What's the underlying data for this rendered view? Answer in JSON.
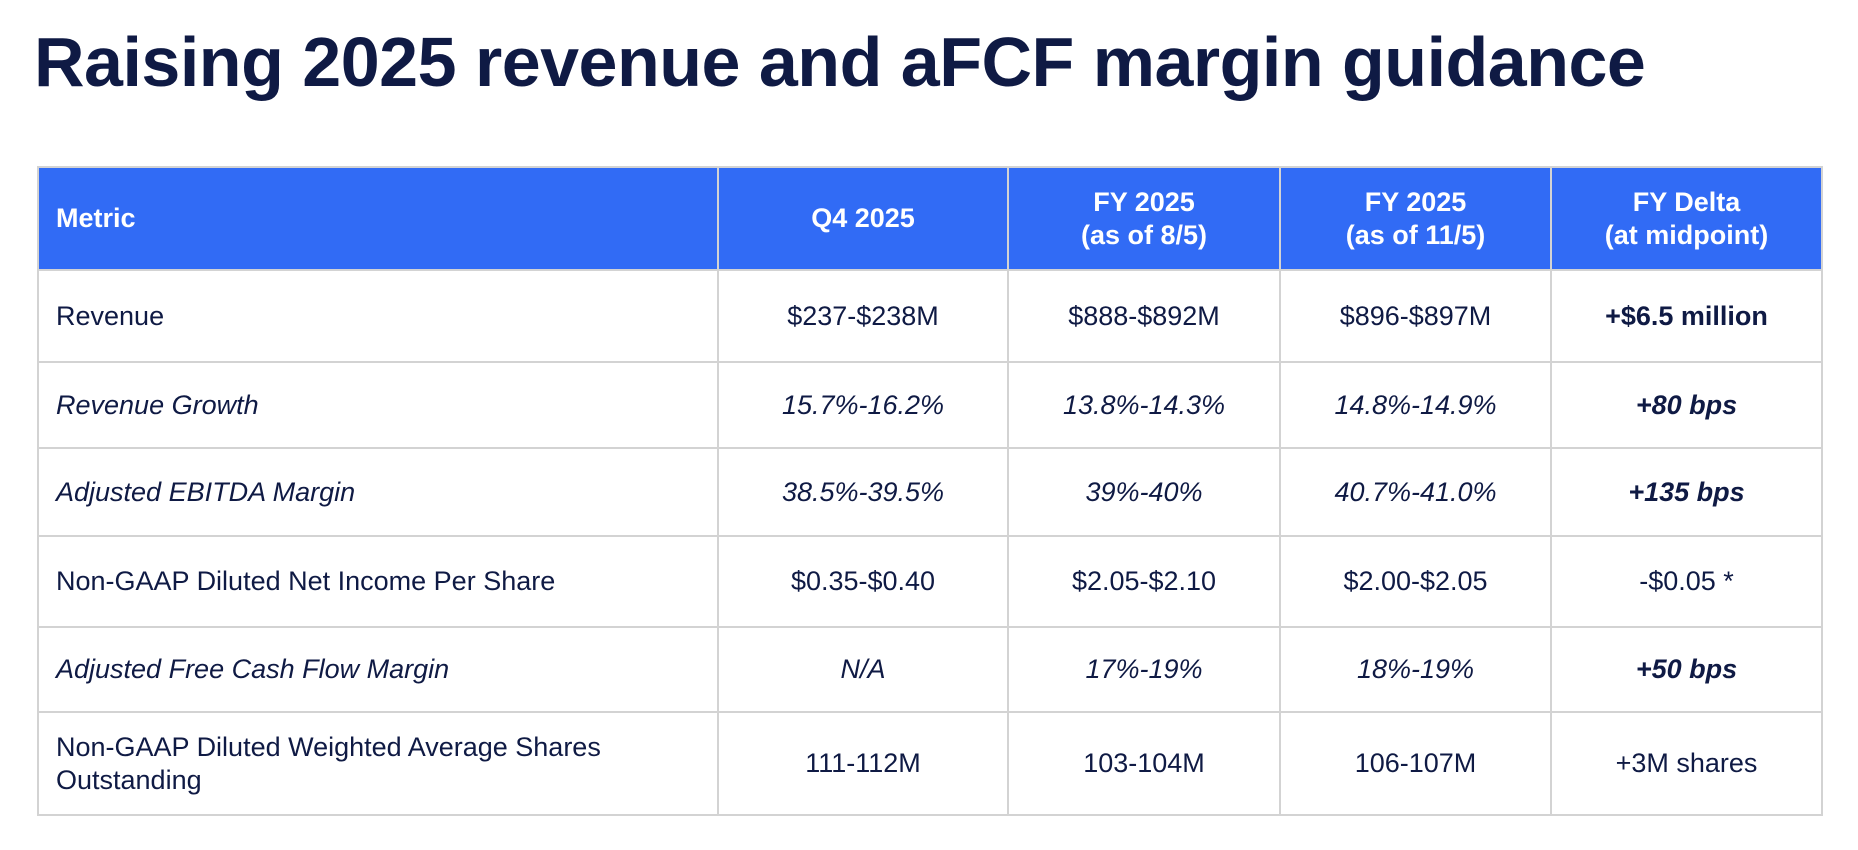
{
  "title": "Raising 2025 revenue and aFCF margin guidance",
  "colors": {
    "header_bg": "#316bf5",
    "header_text": "#ffffff",
    "title_text": "#0f1a44",
    "body_text": "#0f1a44",
    "grid": "#d3d3d3"
  },
  "table": {
    "headers": [
      {
        "line1": "Metric",
        "line2": ""
      },
      {
        "line1": "Q4 2025",
        "line2": ""
      },
      {
        "line1": "FY 2025",
        "line2": "(as of 8/5)"
      },
      {
        "line1": "FY 2025",
        "line2": "(as of 11/5)"
      },
      {
        "line1": "FY Delta",
        "line2": "(at midpoint)"
      }
    ],
    "rows": [
      {
        "metric": "Revenue",
        "q4_2025": "$237-$238M",
        "fy_aug": "$888-$892M",
        "fy_nov": "$896-$897M",
        "delta": "+$6.5 million",
        "italic": false
      },
      {
        "metric": "Revenue Growth",
        "q4_2025": "15.7%-16.2%",
        "fy_aug": "13.8%-14.3%",
        "fy_nov": "14.8%-14.9%",
        "delta": "+80 bps",
        "italic": true
      },
      {
        "metric": "Adjusted EBITDA Margin",
        "q4_2025": "38.5%-39.5%",
        "fy_aug": "39%-40%",
        "fy_nov": "40.7%-41.0%",
        "delta": "+135 bps",
        "italic": true
      },
      {
        "metric": "Non-GAAP Diluted Net Income Per Share",
        "q4_2025": "$0.35-$0.40",
        "fy_aug": "$2.05-$2.10",
        "fy_nov": "$2.00-$2.05",
        "delta": "-$0.05 *",
        "italic": false
      },
      {
        "metric": "Adjusted Free Cash Flow Margin",
        "q4_2025": "N/A",
        "fy_aug": "17%-19%",
        "fy_nov": "18%-19%",
        "delta": "+50 bps",
        "italic": true
      },
      {
        "metric": "Non-GAAP Diluted Weighted Average Shares Outstanding",
        "q4_2025": "111-112M",
        "fy_aug": "103-104M",
        "fy_nov": "106-107M",
        "delta": "+3M shares",
        "italic": false
      }
    ]
  }
}
